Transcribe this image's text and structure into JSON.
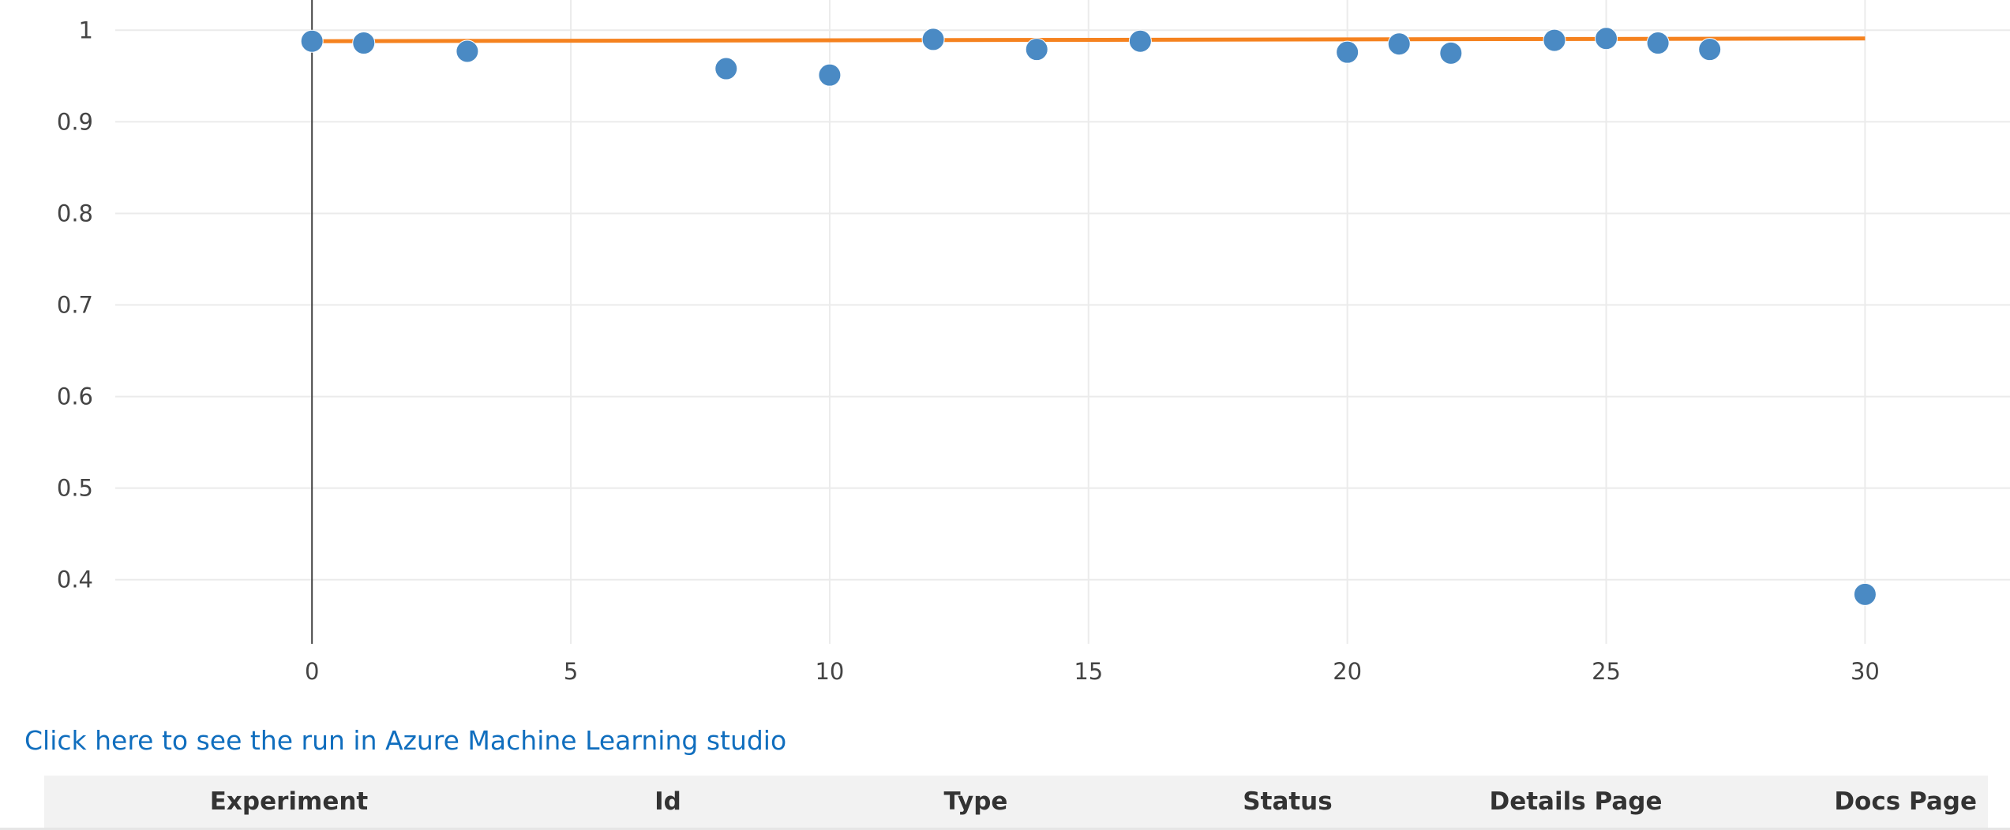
{
  "chart_data": {
    "type": "scatter",
    "title": "",
    "xlabel": "",
    "ylabel": "",
    "xlim": [
      -3.8,
      32.8
    ],
    "ylim": [
      0.33,
      1.033
    ],
    "x_ticks": [
      0,
      5,
      10,
      15,
      20,
      25,
      30
    ],
    "y_ticks": [
      0.4,
      0.5,
      0.6,
      0.7,
      0.8,
      0.9,
      1
    ],
    "grid": true,
    "legend": "none",
    "series": [
      {
        "kind": "markers",
        "color": "#4a8ac4",
        "x": [
          0,
          1,
          3,
          8,
          10,
          12,
          14,
          16,
          20,
          21,
          22,
          24,
          25,
          26,
          27,
          30
        ],
        "y": [
          0.988,
          0.986,
          0.977,
          0.958,
          0.951,
          0.99,
          0.979,
          0.988,
          0.976,
          0.985,
          0.975,
          0.989,
          0.991,
          0.986,
          0.979,
          0.384
        ]
      },
      {
        "kind": "line",
        "color": "#f5821f",
        "x": [
          0,
          30
        ],
        "y": [
          0.988,
          0.991
        ]
      }
    ]
  },
  "link": {
    "text": "Click here to see the run in Azure Machine Learning studio"
  },
  "table": {
    "headers": [
      "Experiment",
      "Id",
      "Type",
      "Status",
      "Details Page",
      "Docs Page"
    ]
  }
}
